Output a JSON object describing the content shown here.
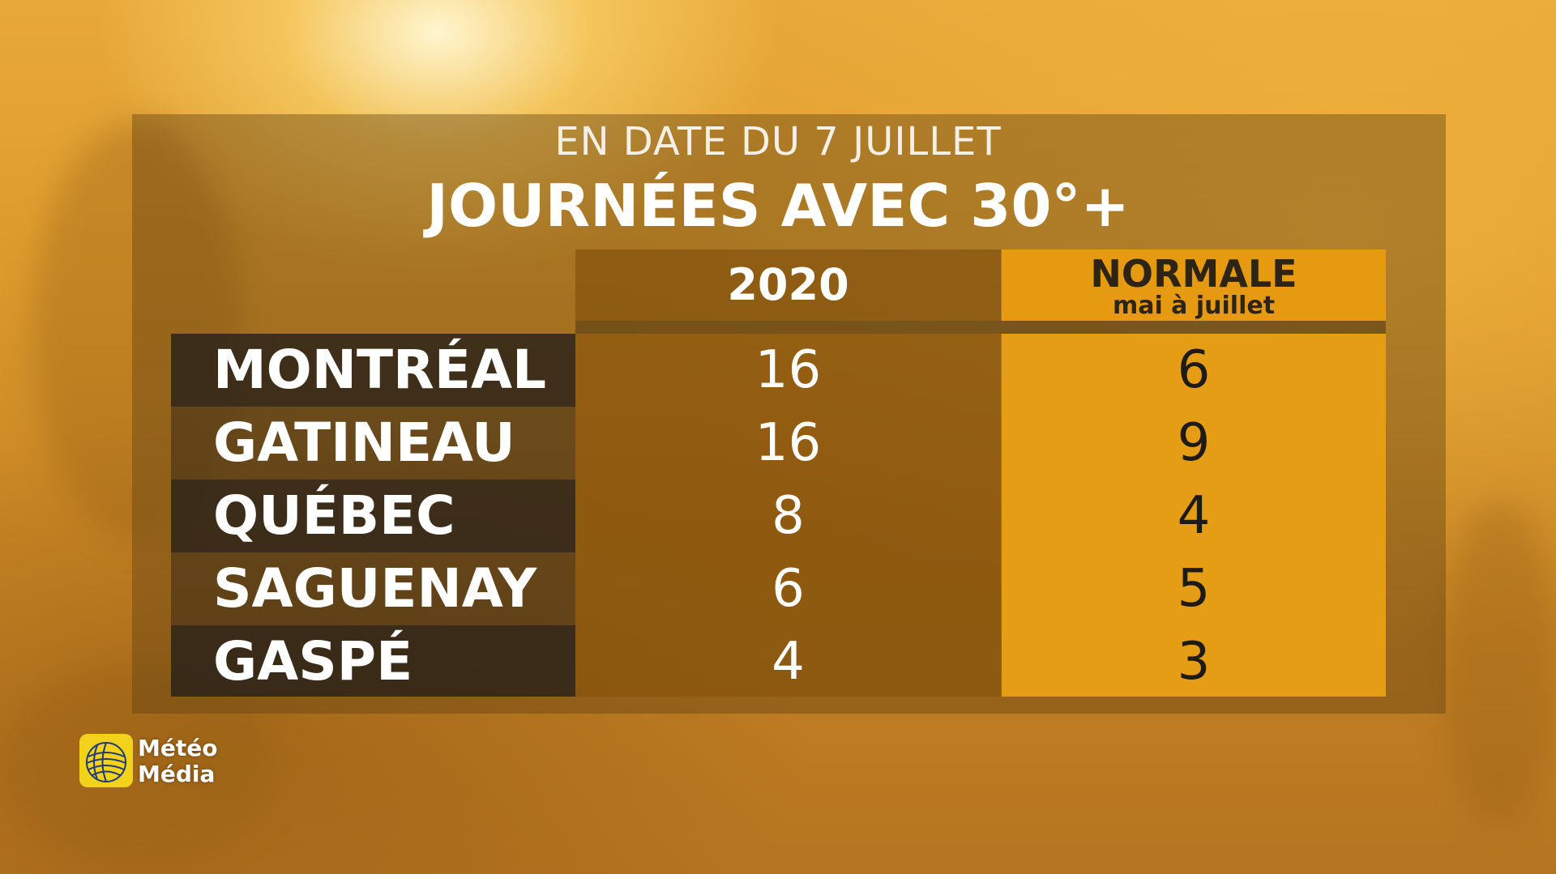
{
  "header": {
    "subtitle": "EN DATE DU 7 JUILLET",
    "title": "JOURNÉES AVEC 30°+"
  },
  "columns": {
    "col_2020": "2020",
    "col_normale": "NORMALE",
    "col_normale_sub": "mai à juillet"
  },
  "rows": [
    {
      "city": "MONTRÉAL",
      "y2020": "16",
      "normale": "6"
    },
    {
      "city": "GATINEAU",
      "y2020": "16",
      "normale": "9"
    },
    {
      "city": "QUÉBEC",
      "y2020": "8",
      "normale": "4"
    },
    {
      "city": "SAGUENAY",
      "y2020": "6",
      "normale": "5"
    },
    {
      "city": "GASPÉ",
      "y2020": "4",
      "normale": "3"
    }
  ],
  "logo": {
    "line1": "Météo",
    "line2": "Média"
  },
  "colors": {
    "accent_orange": "#e59d15",
    "logo_yellow": "#f3d21c"
  }
}
